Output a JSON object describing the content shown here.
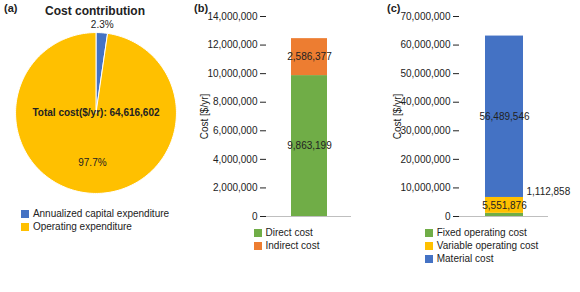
{
  "chart_data": [
    {
      "type": "pie",
      "panel_label": "(a)",
      "title": "Cost contribution",
      "annotation": "Total cost($/yr): 64,616,602",
      "categories": [
        "Annualized capital expenditure",
        "Operating expenditure"
      ],
      "values": [
        2.3,
        97.7
      ],
      "value_labels": [
        "2.3%",
        "97.7%"
      ],
      "colors": [
        "#4472c4",
        "#ffc000"
      ],
      "data_labels": true,
      "legend": "bottom"
    },
    {
      "type": "bar",
      "panel_label": "(b)",
      "stacked": true,
      "ylabel": "Cost [$/yr]",
      "categories": [
        null
      ],
      "series": [
        {
          "name": "Direct cost",
          "color": "#70ad47",
          "values": [
            9863199
          ],
          "value_labels": [
            "9,863,199"
          ]
        },
        {
          "name": "Indirect cost",
          "color": "#ed7d31",
          "values": [
            2586377
          ],
          "value_labels": [
            "2,586,377"
          ]
        }
      ],
      "ylim": [
        0,
        14000000
      ],
      "yticks": [
        0,
        {
          "value": 2000000,
          "label": "2,000,000"
        },
        {
          "value": 4000000,
          "label": "4,000,000"
        },
        {
          "value": 6000000,
          "label": "6,000,000"
        },
        {
          "value": 8000000,
          "label": "8,000,000"
        },
        {
          "value": 10000000,
          "label": "10,000,000"
        },
        {
          "value": 12000000,
          "label": "12,000,000"
        },
        {
          "value": 14000000,
          "label": "14,000,000"
        }
      ],
      "grid": false,
      "data_labels": true,
      "legend": "bottom"
    },
    {
      "type": "bar",
      "panel_label": "(c)",
      "stacked": true,
      "ylabel": "Cost [$/yr]",
      "categories": [
        null
      ],
      "series": [
        {
          "name": "Fixed operating cost",
          "color": "#70ad47",
          "values": [
            1112858
          ],
          "value_labels": [
            "1,112,858"
          ]
        },
        {
          "name": "Variable operating cost",
          "color": "#ffc000",
          "values": [
            5551876
          ],
          "value_labels": [
            "5,551,876"
          ]
        },
        {
          "name": "Material cost",
          "color": "#4472c4",
          "values": [
            56489546
          ],
          "value_labels": [
            "56,489,546"
          ]
        }
      ],
      "ylim": [
        0,
        70000000
      ],
      "yticks": [
        0,
        {
          "value": 10000000,
          "label": "10,000,000"
        },
        {
          "value": 20000000,
          "label": "20,000,000"
        },
        {
          "value": 30000000,
          "label": "30,000,000"
        },
        {
          "value": 40000000,
          "label": "40,000,000"
        },
        {
          "value": 50000000,
          "label": "50,000,000"
        },
        {
          "value": 60000000,
          "label": "60,000,000"
        },
        {
          "value": 70000000,
          "label": "70,000,000"
        }
      ],
      "grid": false,
      "data_labels": true,
      "legend": "bottom"
    }
  ]
}
